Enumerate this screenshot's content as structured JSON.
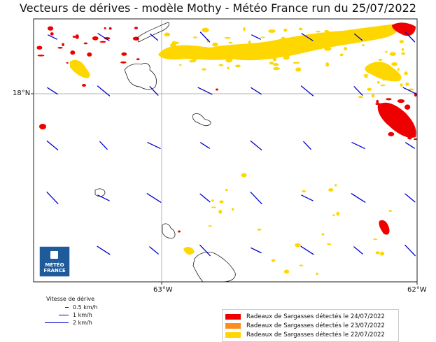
{
  "title": "Vecteurs de dérives - modèle Mothy - Météo France run du 25/07/2022",
  "map": {
    "lat_ticks": [
      "18°N"
    ],
    "lon_ticks": [
      "63°W",
      "62°W"
    ],
    "logo": {
      "line1": "MÉTÉO",
      "line2": "FRANCE"
    }
  },
  "legend_drift": {
    "title": "Vitesse de dérive",
    "items": [
      "0.5 km/h",
      "1 km/h",
      "2 km/h"
    ],
    "color": "#0000cc"
  },
  "legend_sargassum": {
    "items": [
      {
        "label": "Radeaux de Sargasses détectés le 24/07/2022",
        "color": "#ee0000"
      },
      {
        "label": "Radeaux de Sargasses détectés le 23/07/2022",
        "color": "#ff8c1a"
      },
      {
        "label": "Radeaux de Sargasses détectés le 22/07/2022",
        "color": "#ffd700"
      }
    ]
  }
}
